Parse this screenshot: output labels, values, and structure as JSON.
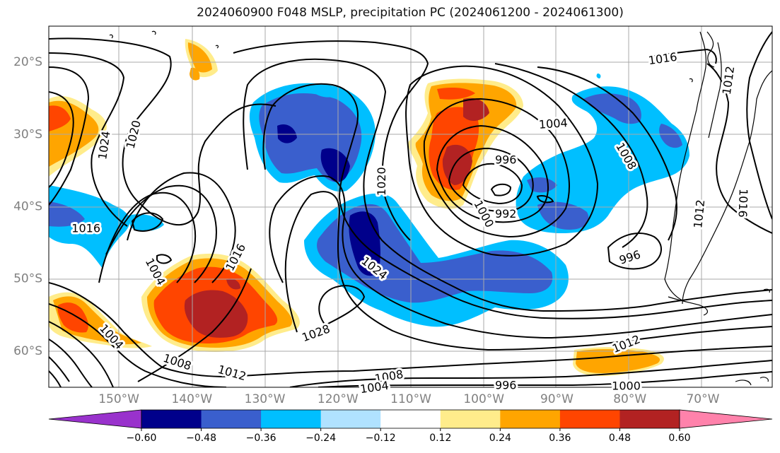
{
  "title": "2024060900 F048 MSLP, precipitation PC (2024061200 - 2024061300)",
  "map": {
    "lat_ticks": [
      "20°S",
      "30°S",
      "40°S",
      "50°S",
      "60°S"
    ],
    "lon_ticks": [
      "150°W",
      "140°W",
      "130°W",
      "120°W",
      "110°W",
      "100°W",
      "90°W",
      "80°W",
      "70°W"
    ],
    "contour_labels": [
      {
        "text": "1016",
        "lon": -75.5,
        "lat": -19.5,
        "rot": -8
      },
      {
        "text": "1012",
        "lon": -66.5,
        "lat": -22.5,
        "rot": -82
      },
      {
        "text": "1024",
        "lon": -152,
        "lat": -31.5,
        "rot": -82
      },
      {
        "text": "1020",
        "lon": -148,
        "lat": -30,
        "rot": -76
      },
      {
        "text": "1004",
        "lon": -90.5,
        "lat": -28.5,
        "rot": -4
      },
      {
        "text": "996",
        "lon": -97,
        "lat": -33.5,
        "rot": 0
      },
      {
        "text": "1008",
        "lon": -80.5,
        "lat": -33,
        "rot": 60
      },
      {
        "text": "1020",
        "lon": -114,
        "lat": -36.5,
        "rot": -90
      },
      {
        "text": "1000",
        "lon": -100,
        "lat": -41,
        "rot": 62
      },
      {
        "text": "992",
        "lon": -97,
        "lat": -41,
        "rot": 0
      },
      {
        "text": "1012",
        "lon": -70.5,
        "lat": -41,
        "rot": -84
      },
      {
        "text": "1016",
        "lon": -64.5,
        "lat": -39.5,
        "rot": 92
      },
      {
        "text": "1016",
        "lon": -154.5,
        "lat": -43,
        "rot": 0
      },
      {
        "text": "1016",
        "lon": -134,
        "lat": -47,
        "rot": -62
      },
      {
        "text": "1004",
        "lon": -145,
        "lat": -49,
        "rot": 62
      },
      {
        "text": "1024",
        "lon": -115,
        "lat": -48.5,
        "rot": 38
      },
      {
        "text": "996",
        "lon": -80,
        "lat": -47,
        "rot": -18
      },
      {
        "text": "1004",
        "lon": -151,
        "lat": -58,
        "rot": 48
      },
      {
        "text": "1028",
        "lon": -123,
        "lat": -57.5,
        "rot": -20
      },
      {
        "text": "1012",
        "lon": -80.5,
        "lat": -59,
        "rot": -22
      },
      {
        "text": "1008",
        "lon": -142,
        "lat": -61.5,
        "rot": 18
      },
      {
        "text": "1012",
        "lon": -134.5,
        "lat": -63,
        "rot": 16
      },
      {
        "text": "1008",
        "lon": -113,
        "lat": -63.5,
        "rot": -10
      },
      {
        "text": "1004",
        "lon": -115,
        "lat": -65,
        "rot": -8
      },
      {
        "text": "996",
        "lon": -97,
        "lat": -64.7,
        "rot": 0
      },
      {
        "text": "1000",
        "lon": -80.5,
        "lat": -64.8,
        "rot": 0
      }
    ]
  },
  "colorbar": {
    "labels": [
      "−0.60",
      "−0.48",
      "−0.36",
      "−0.24",
      "−0.12",
      "0.12",
      "0.24",
      "0.36",
      "0.48",
      "0.60"
    ],
    "colors": {
      "under": "#9932cc",
      "b1": "#00008b",
      "b2": "#3a5fcd",
      "b3": "#00bfff",
      "b4": "#b0e2ff",
      "mid": "#ffffff",
      "p1": "#ffec8b",
      "p2": "#ffa500",
      "p3": "#ff4500",
      "p4": "#b22222",
      "over": "#ff82ab"
    }
  }
}
